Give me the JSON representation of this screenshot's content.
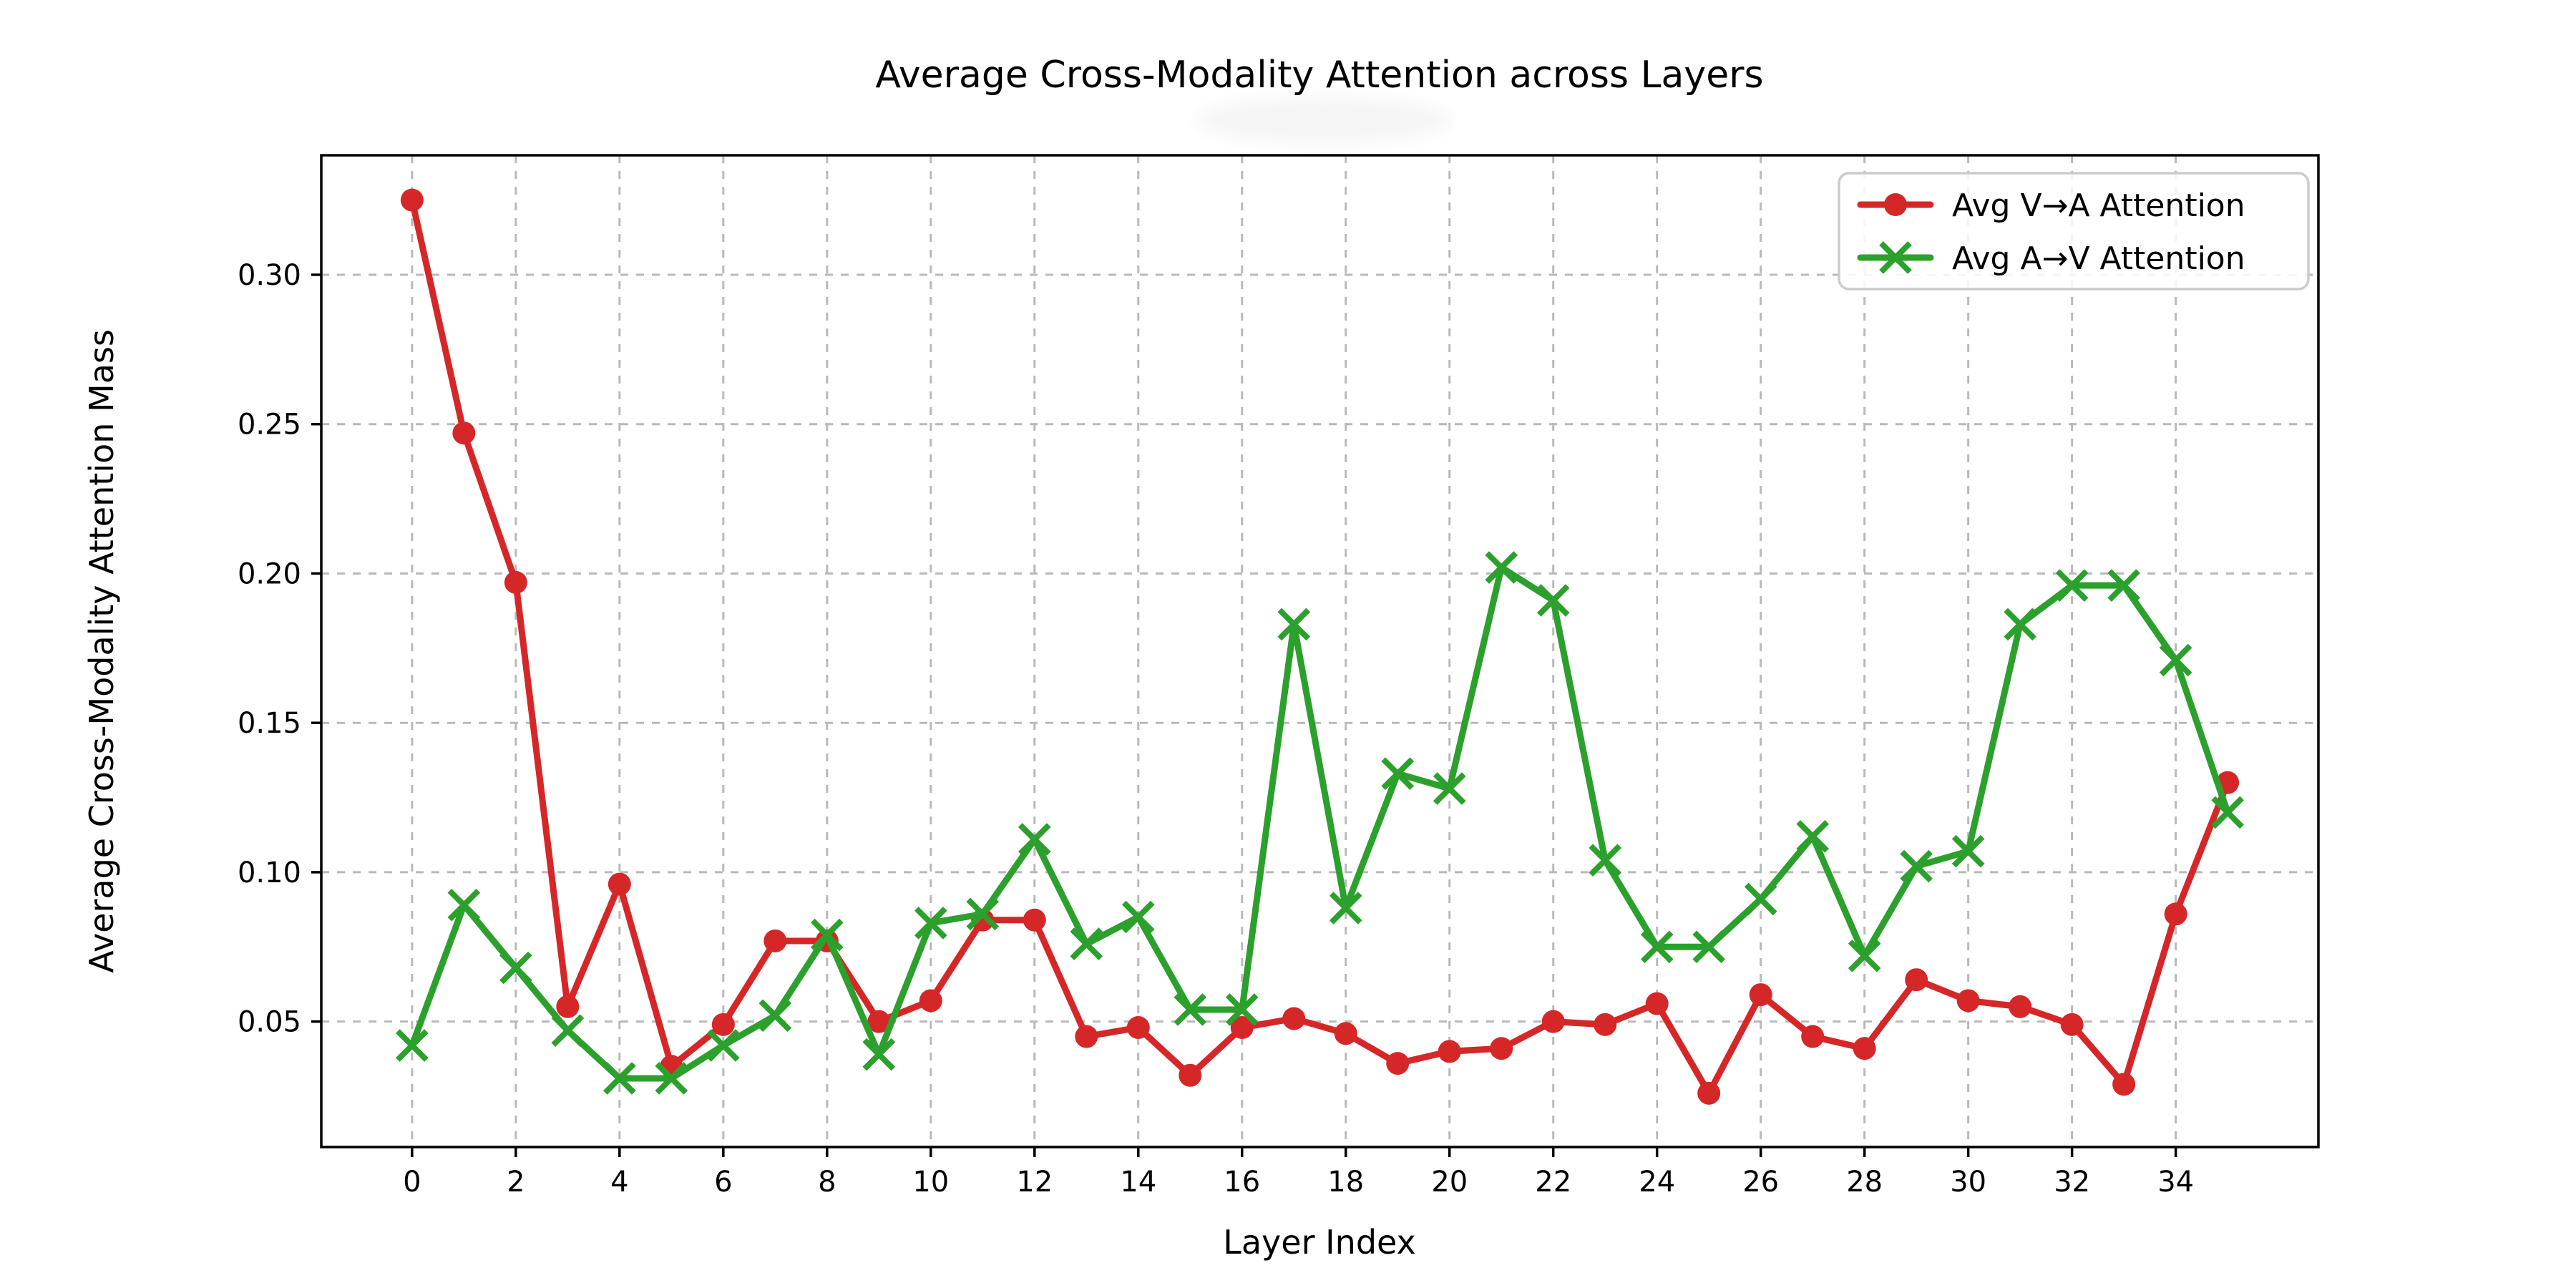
{
  "chart_data": {
    "type": "line",
    "title": "Average Cross-Modality Attention across Layers",
    "xlabel": "Layer Index",
    "ylabel": "Average Cross-Modality Attention Mass",
    "x": [
      0,
      1,
      2,
      3,
      4,
      5,
      6,
      7,
      8,
      9,
      10,
      11,
      12,
      13,
      14,
      15,
      16,
      17,
      18,
      19,
      20,
      21,
      22,
      23,
      24,
      25,
      26,
      27,
      28,
      29,
      30,
      31,
      32,
      33,
      34,
      35
    ],
    "series": [
      {
        "name": "Avg V→A Attention",
        "color": "#d62728",
        "marker": "circle",
        "values": [
          0.325,
          0.247,
          0.197,
          0.055,
          0.096,
          0.035,
          0.049,
          0.077,
          0.077,
          0.05,
          0.057,
          0.084,
          0.084,
          0.045,
          0.048,
          0.032,
          0.048,
          0.051,
          0.046,
          0.036,
          0.04,
          0.041,
          0.05,
          0.049,
          0.056,
          0.026,
          0.059,
          0.045,
          0.041,
          0.064,
          0.057,
          0.055,
          0.049,
          0.029,
          0.086,
          0.13
        ]
      },
      {
        "name": "Avg A→V Attention",
        "color": "#2ca02c",
        "marker": "x",
        "values": [
          0.042,
          0.089,
          0.068,
          0.047,
          0.031,
          0.031,
          0.042,
          0.052,
          0.079,
          0.039,
          0.083,
          0.086,
          0.111,
          0.076,
          0.085,
          0.054,
          0.054,
          0.183,
          0.088,
          0.133,
          0.128,
          0.202,
          0.191,
          0.104,
          0.075,
          0.075,
          0.091,
          0.112,
          0.072,
          0.102,
          0.107,
          0.183,
          0.196,
          0.196,
          0.171,
          0.12
        ]
      }
    ],
    "xlim": [
      -1.75,
      36.75
    ],
    "ylim": [
      0.008,
      0.34
    ],
    "x_ticks": [
      0,
      2,
      4,
      6,
      8,
      10,
      12,
      14,
      16,
      18,
      20,
      22,
      24,
      26,
      28,
      30,
      32,
      34
    ],
    "y_ticks": [
      {
        "value": 0.05,
        "label": "0.05"
      },
      {
        "value": 0.1,
        "label": "0.10"
      },
      {
        "value": 0.15,
        "label": "0.15"
      },
      {
        "value": 0.2,
        "label": "0.20"
      },
      {
        "value": 0.25,
        "label": "0.25"
      },
      {
        "value": 0.3,
        "label": "0.30"
      }
    ],
    "grid": true,
    "grid_style": "dashed",
    "legend_position": "upper right"
  }
}
